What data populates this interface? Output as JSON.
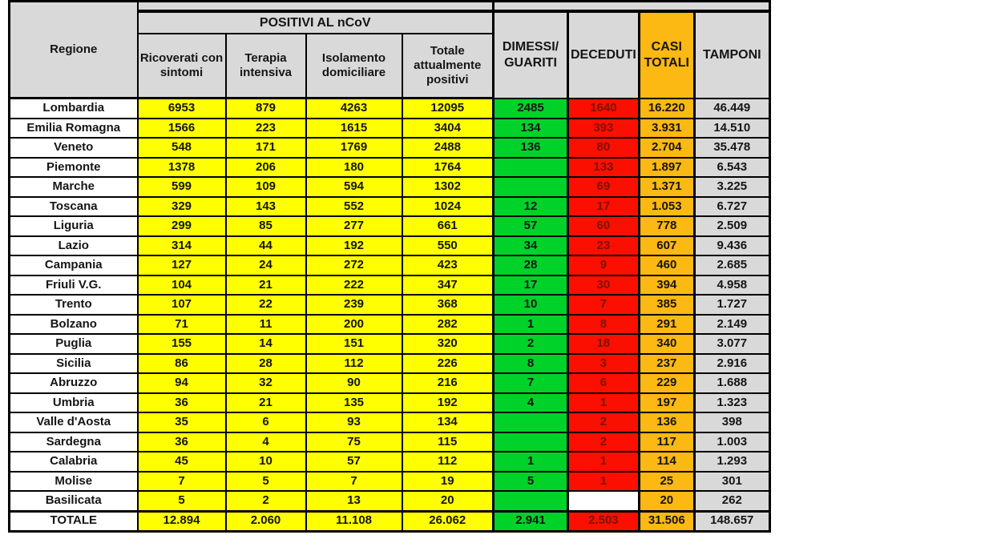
{
  "chart_data": {
    "type": "table",
    "group_header": "POSITIVI AL nCoV",
    "columns": [
      "Regione",
      "Ricoverati con sintomi",
      "Terapia intensiva",
      "Isolamento domiciliare",
      "Totale attualmente positivi",
      "DIMESSI/\nGUARITI",
      "DECEDUTI",
      "CASI\nTOTALI",
      "TAMPONI"
    ],
    "rows": [
      [
        "Lombardia",
        "6953",
        "879",
        "4263",
        "12095",
        "2485",
        "1640",
        "16.220",
        "46.449"
      ],
      [
        "Emilia Romagna",
        "1566",
        "223",
        "1615",
        "3404",
        "134",
        "393",
        "3.931",
        "14.510"
      ],
      [
        "Veneto",
        "548",
        "171",
        "1769",
        "2488",
        "136",
        "80",
        "2.704",
        "35.478"
      ],
      [
        "Piemonte",
        "1378",
        "206",
        "180",
        "1764",
        "",
        "133",
        "1.897",
        "6.543"
      ],
      [
        "Marche",
        "599",
        "109",
        "594",
        "1302",
        "",
        "69",
        "1.371",
        "3.225"
      ],
      [
        "Toscana",
        "329",
        "143",
        "552",
        "1024",
        "12",
        "17",
        "1.053",
        "6.727"
      ],
      [
        "Liguria",
        "299",
        "85",
        "277",
        "661",
        "57",
        "60",
        "778",
        "2.509"
      ],
      [
        "Lazio",
        "314",
        "44",
        "192",
        "550",
        "34",
        "23",
        "607",
        "9.436"
      ],
      [
        "Campania",
        "127",
        "24",
        "272",
        "423",
        "28",
        "9",
        "460",
        "2.685"
      ],
      [
        "Friuli V.G.",
        "104",
        "21",
        "222",
        "347",
        "17",
        "30",
        "394",
        "4.958"
      ],
      [
        "Trento",
        "107",
        "22",
        "239",
        "368",
        "10",
        "7",
        "385",
        "1.727"
      ],
      [
        "Bolzano",
        "71",
        "11",
        "200",
        "282",
        "1",
        "8",
        "291",
        "2.149"
      ],
      [
        "Puglia",
        "155",
        "14",
        "151",
        "320",
        "2",
        "18",
        "340",
        "3.077"
      ],
      [
        "Sicilia",
        "86",
        "28",
        "112",
        "226",
        "8",
        "3",
        "237",
        "2.916"
      ],
      [
        "Abruzzo",
        "94",
        "32",
        "90",
        "216",
        "7",
        "6",
        "229",
        "1.688"
      ],
      [
        "Umbria",
        "36",
        "21",
        "135",
        "192",
        "4",
        "1",
        "197",
        "1.323"
      ],
      [
        "Valle d'Aosta",
        "35",
        "6",
        "93",
        "134",
        "",
        "2",
        "136",
        "398"
      ],
      [
        "Sardegna",
        "36",
        "4",
        "75",
        "115",
        "",
        "2",
        "117",
        "1.003"
      ],
      [
        "Calabria",
        "45",
        "10",
        "57",
        "112",
        "1",
        "1",
        "114",
        "1.293"
      ],
      [
        "Molise",
        "7",
        "5",
        "7",
        "19",
        "5",
        "1",
        "25",
        "301"
      ],
      [
        "Basilicata",
        "5",
        "2",
        "13",
        "20",
        "",
        "",
        "20",
        "262"
      ]
    ],
    "totals": [
      "TOTALE",
      "12.894",
      "2.060",
      "11.108",
      "26.062",
      "2.941",
      "2.503",
      "31.506",
      "148.657"
    ],
    "deceduti_white_rows": [
      "Basilicata"
    ]
  },
  "colors": {
    "header_gray": "#d9d9d9",
    "yellow": "#ffff00",
    "green": "#00d22a",
    "red": "#fa0f00",
    "orange": "#fcb813",
    "tamponi_gray": "#d9d9d9",
    "white": "#ffffff",
    "deceduti_text": "#7e1200"
  }
}
